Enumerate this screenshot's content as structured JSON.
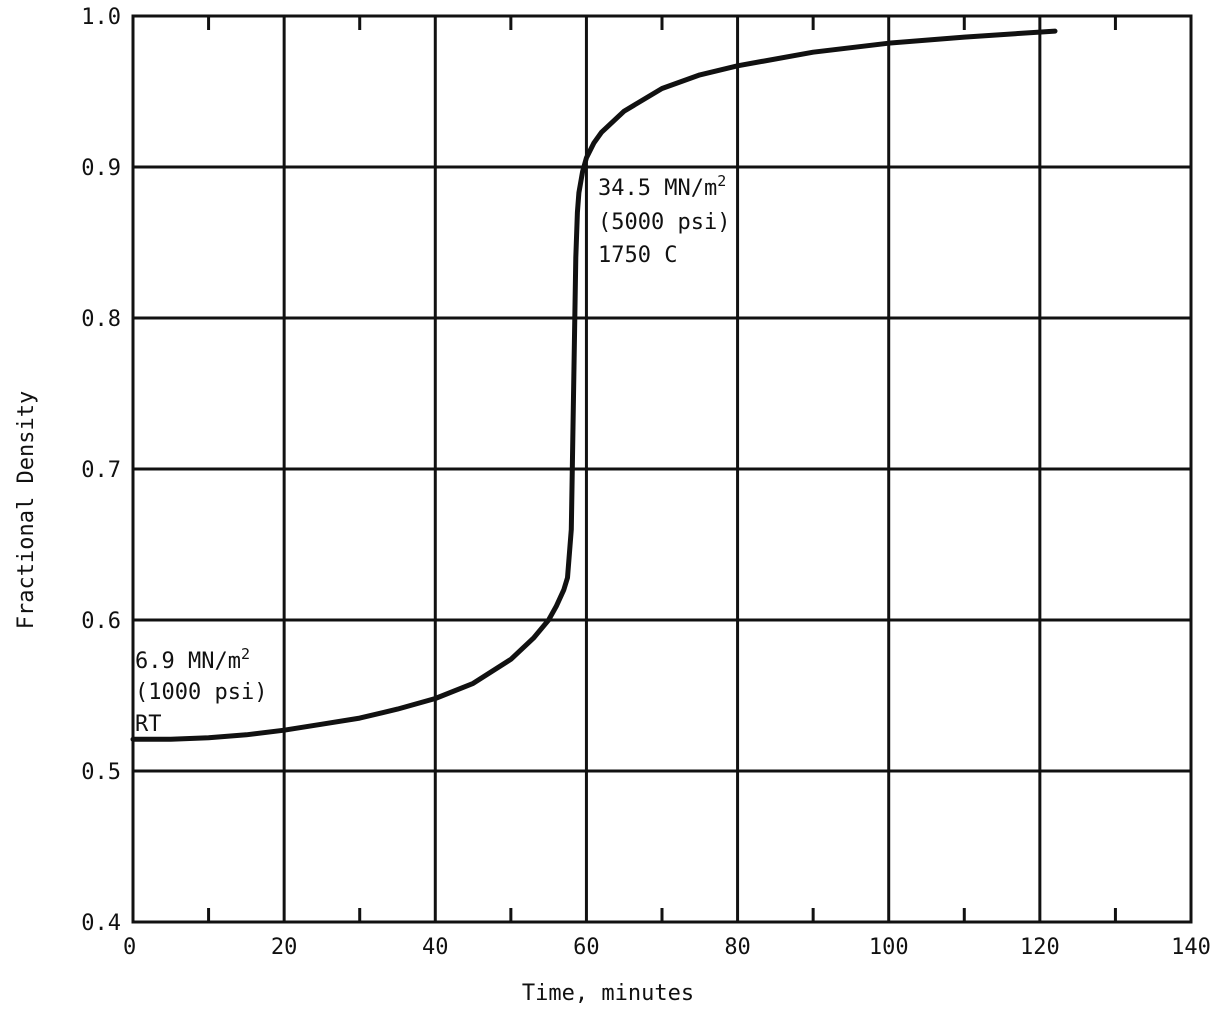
{
  "chart_data": {
    "type": "line",
    "title": "",
    "xlabel": "Time, minutes",
    "ylabel": "Fractional Density",
    "xlim": [
      0,
      140
    ],
    "ylim": [
      0.4,
      1.0
    ],
    "grid": true,
    "x_ticks": [
      "0",
      "20",
      "40",
      "60",
      "80",
      "100",
      "120",
      "140"
    ],
    "y_ticks": [
      "0.4",
      "0.5",
      "0.6",
      "0.7",
      "0.8",
      "0.9",
      "1.0"
    ],
    "series": [
      {
        "x": [
          0,
          5,
          10,
          15,
          20,
          25,
          30,
          35,
          40,
          45,
          50,
          53,
          55,
          56,
          57,
          57.5,
          58,
          58.2,
          58.4,
          58.6,
          58.8,
          59,
          59.5,
          60,
          61,
          62,
          65,
          70,
          75,
          80,
          90,
          100,
          110,
          122
        ],
        "y": [
          0.521,
          0.521,
          0.522,
          0.524,
          0.527,
          0.531,
          0.535,
          0.541,
          0.548,
          0.558,
          0.574,
          0.588,
          0.6,
          0.609,
          0.62,
          0.628,
          0.66,
          0.72,
          0.78,
          0.84,
          0.87,
          0.883,
          0.897,
          0.906,
          0.916,
          0.923,
          0.937,
          0.952,
          0.961,
          0.967,
          0.976,
          0.982,
          0.986,
          0.99
        ]
      }
    ],
    "annotations": [
      {
        "base": "34.5 MN/m",
        "sup": "2",
        "line2": "(5000 psi)",
        "line3": "1750 C"
      },
      {
        "base": "6.9 MN/m",
        "sup": "2",
        "line2": "(1000 psi)",
        "line3": "RT"
      }
    ]
  }
}
